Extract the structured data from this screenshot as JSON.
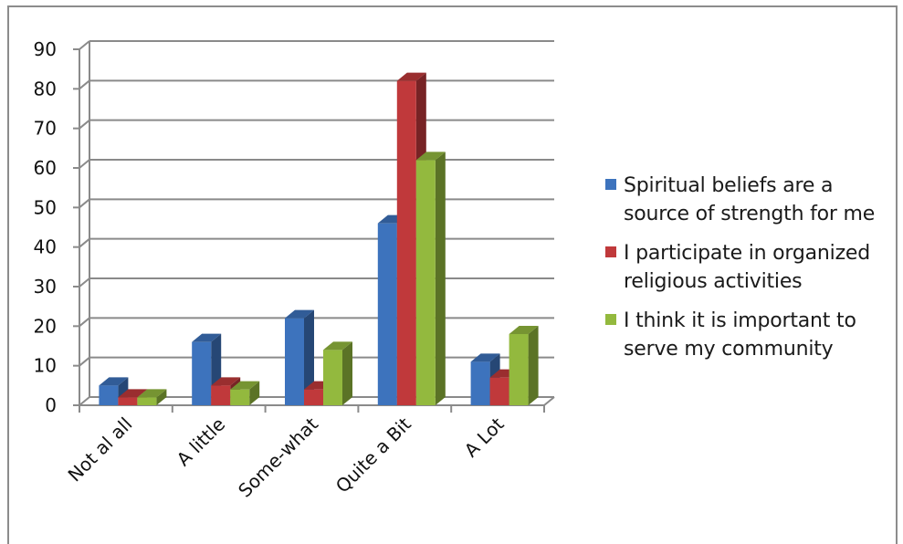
{
  "chart_data": {
    "type": "bar",
    "categories": [
      "Not al all",
      "A little",
      "Some-what",
      "Quite a Bit",
      "A Lot"
    ],
    "series": [
      {
        "name": "Spiritual beliefs are a source of strength for me",
        "color": "#3d73bd",
        "values": [
          5,
          16,
          22,
          46,
          11
        ]
      },
      {
        "name": "I participate in organized religious activities",
        "color": "#c0393b",
        "values": [
          2,
          5,
          4,
          82,
          7
        ]
      },
      {
        "name": "I think it is important to serve my community",
        "color": "#93b93e",
        "values": [
          2,
          4,
          14,
          62,
          18
        ]
      }
    ],
    "ylim": [
      0,
      90
    ],
    "yticks": [
      "0",
      "10",
      "20",
      "30",
      "40",
      "50",
      "60",
      "70",
      "80",
      "90"
    ],
    "grid": true,
    "legend_position": "right",
    "style": "3d-clustered-column"
  }
}
